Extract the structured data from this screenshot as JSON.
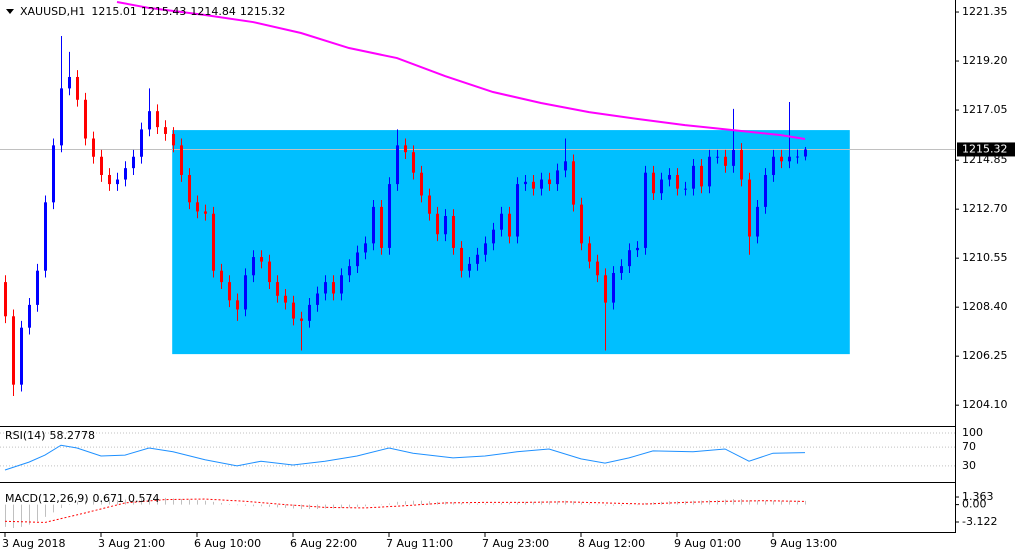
{
  "chart_data": [
    {
      "type": "candlestick",
      "symbol": "XAUUSD,H1",
      "candles": {
        "open": [
          1209.5,
          1208.0,
          1205.0,
          1207.5,
          1208.5,
          1210.0,
          1213.0,
          1215.5,
          1218.0,
          1218.5,
          1217.5,
          1215.8,
          1215.0,
          1214.2,
          1213.8,
          1214.0,
          1214.5,
          1215.0,
          1216.2,
          1217.0,
          1216.3,
          1216.0,
          1215.5,
          1214.2,
          1213.0,
          1212.6,
          1212.5,
          1210.0,
          1209.5,
          1208.7,
          1208.3,
          1209.8,
          1210.6,
          1210.4,
          1209.5,
          1208.9,
          1208.6,
          1207.9,
          1207.8,
          1208.5,
          1209.0,
          1209.5,
          1209.0,
          1209.8,
          1210.2,
          1210.8,
          1211.2,
          1212.8,
          1211.0,
          1213.8,
          1215.5,
          1215.2,
          1214.3,
          1213.3,
          1212.5,
          1211.6,
          1212.4,
          1211.0,
          1210.0,
          1210.3,
          1210.7,
          1211.2,
          1211.8,
          1212.5,
          1211.5,
          1213.8,
          1213.9,
          1213.6,
          1214.0,
          1213.8,
          1214.4,
          1214.8,
          1212.9,
          1211.2,
          1210.4,
          1209.8,
          1208.6,
          1209.9,
          1210.2,
          1210.9,
          1211.0,
          1214.3,
          1213.4,
          1214.0,
          1214.2,
          1213.6,
          1213.6,
          1214.6,
          1213.7,
          1215.0,
          1215.0,
          1214.6,
          1215.3,
          1214.0,
          1211.5,
          1212.8,
          1214.2,
          1215.0,
          1214.8,
          1215.0,
          1215.01
        ],
        "high": [
          1209.8,
          1208.3,
          1207.8,
          1208.8,
          1210.3,
          1213.3,
          1215.8,
          1220.3,
          1219.6,
          1218.8,
          1217.8,
          1216.1,
          1215.3,
          1214.5,
          1214.3,
          1214.8,
          1215.3,
          1216.5,
          1218.0,
          1217.3,
          1216.6,
          1216.3,
          1215.8,
          1214.5,
          1213.3,
          1212.9,
          1212.8,
          1210.3,
          1209.8,
          1209.0,
          1210.1,
          1210.9,
          1210.9,
          1210.7,
          1209.8,
          1209.2,
          1208.9,
          1208.2,
          1208.8,
          1209.3,
          1209.8,
          1209.8,
          1210.1,
          1210.5,
          1211.1,
          1211.5,
          1213.1,
          1213.1,
          1214.1,
          1216.2,
          1215.8,
          1215.5,
          1214.6,
          1213.6,
          1212.8,
          1212.7,
          1212.7,
          1211.3,
          1210.6,
          1211.0,
          1211.5,
          1212.1,
          1212.8,
          1212.8,
          1214.1,
          1214.2,
          1214.2,
          1214.3,
          1214.3,
          1214.7,
          1215.8,
          1215.1,
          1213.2,
          1211.5,
          1210.7,
          1210.1,
          1210.2,
          1210.5,
          1211.2,
          1211.3,
          1214.6,
          1214.6,
          1214.3,
          1214.5,
          1214.5,
          1213.9,
          1214.9,
          1214.9,
          1215.3,
          1215.3,
          1215.3,
          1217.1,
          1215.6,
          1214.3,
          1213.1,
          1214.5,
          1215.3,
          1215.3,
          1217.4,
          1215.31,
          1215.43
        ],
        "low": [
          1207.7,
          1204.5,
          1204.7,
          1207.2,
          1208.2,
          1209.7,
          1212.7,
          1215.2,
          1217.7,
          1217.2,
          1215.5,
          1214.7,
          1213.9,
          1213.5,
          1213.5,
          1213.7,
          1214.2,
          1214.7,
          1215.9,
          1216.0,
          1215.7,
          1215.2,
          1213.9,
          1212.7,
          1212.3,
          1212.2,
          1209.7,
          1209.2,
          1208.4,
          1207.8,
          1208.0,
          1209.5,
          1210.1,
          1209.2,
          1208.6,
          1208.3,
          1207.6,
          1206.5,
          1207.5,
          1208.2,
          1208.7,
          1208.7,
          1208.7,
          1209.5,
          1209.9,
          1210.5,
          1210.9,
          1210.7,
          1210.7,
          1213.5,
          1214.9,
          1214.0,
          1213.0,
          1212.2,
          1211.3,
          1211.3,
          1210.7,
          1209.7,
          1209.7,
          1210.0,
          1210.4,
          1210.9,
          1211.5,
          1211.2,
          1211.2,
          1213.5,
          1213.3,
          1213.3,
          1213.5,
          1213.5,
          1214.1,
          1212.6,
          1210.9,
          1210.1,
          1209.5,
          1206.5,
          1208.3,
          1209.6,
          1209.9,
          1210.6,
          1210.7,
          1213.1,
          1213.1,
          1213.7,
          1213.3,
          1213.3,
          1213.3,
          1213.4,
          1213.4,
          1214.7,
          1214.3,
          1214.3,
          1213.7,
          1210.7,
          1211.2,
          1212.5,
          1213.9,
          1214.5,
          1214.5,
          1214.7,
          1214.84
        ],
        "close": [
          1208.0,
          1205.0,
          1207.5,
          1208.5,
          1210.0,
          1213.0,
          1215.5,
          1218.0,
          1218.5,
          1217.5,
          1215.8,
          1215.0,
          1214.2,
          1213.8,
          1214.0,
          1214.5,
          1215.0,
          1216.2,
          1217.0,
          1216.3,
          1216.0,
          1215.5,
          1214.2,
          1213.0,
          1212.6,
          1212.5,
          1210.0,
          1209.5,
          1208.7,
          1208.3,
          1209.8,
          1210.6,
          1210.4,
          1209.5,
          1208.9,
          1208.6,
          1207.9,
          1207.8,
          1208.5,
          1209.0,
          1209.5,
          1209.0,
          1209.8,
          1210.2,
          1210.8,
          1211.2,
          1212.8,
          1211.0,
          1213.8,
          1215.5,
          1215.2,
          1214.3,
          1213.3,
          1212.5,
          1211.6,
          1212.4,
          1211.0,
          1210.0,
          1210.3,
          1210.7,
          1211.2,
          1211.8,
          1212.5,
          1211.5,
          1213.8,
          1213.9,
          1213.6,
          1214.0,
          1213.8,
          1214.4,
          1214.8,
          1212.9,
          1211.2,
          1210.4,
          1209.8,
          1208.6,
          1209.9,
          1210.2,
          1210.9,
          1211.0,
          1214.3,
          1213.4,
          1214.0,
          1214.2,
          1213.6,
          1213.6,
          1214.6,
          1213.7,
          1215.0,
          1215.0,
          1214.6,
          1215.3,
          1214.0,
          1211.5,
          1212.8,
          1214.2,
          1215.0,
          1214.8,
          1215.0,
          1215.01,
          1215.32
        ]
      },
      "up_color": "#0000ff",
      "down_color": "#ff0000",
      "ylim": [
        1203.23,
        1221.79
      ],
      "yticks": [
        1221.35,
        {
          "value": 1219.2,
          "label": "1219.20"
        },
        1217.05,
        1214.85,
        {
          "value": 1212.7,
          "label": "1212.70"
        },
        1210.55,
        {
          "value": 1208.4,
          "label": "1208.40"
        },
        1206.25,
        {
          "value": 1204.1,
          "label": "1204.10"
        }
      ],
      "xticks": [
        {
          "value": 0,
          "label": "3 Aug 2018"
        },
        {
          "value": 12,
          "label": "3 Aug 21:00"
        },
        {
          "value": 24,
          "label": "6 Aug 10:00"
        },
        {
          "value": 36,
          "label": "6 Aug 22:00"
        },
        {
          "value": 48,
          "label": "7 Aug 11:00"
        },
        {
          "value": 60,
          "label": "7 Aug 23:00"
        },
        {
          "value": 72,
          "label": "8 Aug 12:00"
        },
        {
          "value": 84,
          "label": "9 Aug 01:00"
        },
        {
          "value": 96,
          "label": "9 Aug 13:00"
        }
      ],
      "moving_average": {
        "color": "#ff00ff",
        "x": [
          14,
          18,
          25,
          31,
          37,
          43,
          49,
          55,
          61,
          67,
          73,
          79,
          85,
          91,
          97,
          100
        ],
        "values": [
          1221.79,
          1221.53,
          1221.22,
          1220.91,
          1220.43,
          1219.77,
          1219.33,
          1218.54,
          1217.84,
          1217.36,
          1216.96,
          1216.66,
          1216.39,
          1216.17,
          1215.95,
          1215.78
        ]
      },
      "zone": {
        "color": "#00bfff",
        "x": [
          20.9,
          105.6
        ],
        "y": [
          1206.34,
          1216.17
        ]
      },
      "price_line_color": "#c0c0c0"
    },
    {
      "type": "line",
      "title": "RSI(14)",
      "color": "#1e90ff",
      "x": [
        0,
        3,
        5,
        7,
        9,
        12,
        15,
        18,
        21,
        25,
        29,
        32,
        36,
        40,
        44,
        48,
        51,
        56,
        60,
        64,
        68,
        72,
        75,
        78,
        81,
        86,
        90,
        93,
        96,
        100
      ],
      "values": [
        21.3,
        38,
        53,
        74,
        68,
        51,
        53,
        68,
        60,
        43,
        30,
        40,
        32,
        40,
        51,
        68,
        57,
        47,
        51,
        60,
        66,
        45,
        36,
        47,
        62,
        60,
        66,
        40,
        57,
        58.2778
      ],
      "ylim": [
        0,
        100
      ],
      "yticks": [
        100,
        70,
        30
      ]
    },
    {
      "type": "macd",
      "title": "MACD(12,26,9)",
      "histogram": {
        "color": "#c0c0c0",
        "values": [
          -4.0,
          -4.2,
          -4.0,
          -3.6,
          -3.0,
          -2.2,
          -1.4,
          -0.6,
          0.1,
          0.5,
          0.7,
          0.8,
          0.8,
          0.8,
          0.8,
          0.9,
          1.0,
          1.1,
          1.2,
          1.2,
          1.2,
          1.1,
          1.0,
          0.9,
          0.8,
          0.7,
          0.5,
          0.3,
          0.1,
          -0.1,
          -0.2,
          -0.3,
          -0.3,
          -0.4,
          -0.5,
          -0.6,
          -0.7,
          -0.8,
          -0.8,
          -0.8,
          -0.7,
          -0.7,
          -0.6,
          -0.5,
          -0.4,
          -0.3,
          -0.1,
          0.0,
          0.2,
          0.5,
          0.6,
          0.7,
          0.7,
          0.6,
          0.5,
          0.5,
          0.4,
          0.3,
          0.2,
          0.2,
          0.2,
          0.2,
          0.3,
          0.3,
          0.4,
          0.5,
          0.5,
          0.6,
          0.6,
          0.6,
          0.7,
          0.6,
          0.4,
          0.2,
          0.0,
          -0.2,
          -0.2,
          -0.2,
          -0.1,
          0.0,
          0.3,
          0.4,
          0.5,
          0.6,
          0.6,
          0.6,
          0.7,
          0.7,
          0.8,
          0.8,
          0.9,
          1.0,
          1.0,
          0.8,
          0.7,
          0.7,
          0.7,
          0.7,
          0.7,
          0.7,
          0.671
        ]
      },
      "signal": {
        "color": "#ff0000",
        "x": [
          0,
          5,
          10,
          15,
          20,
          25,
          30,
          35,
          40,
          45,
          50,
          55,
          60,
          65,
          70,
          75,
          80,
          85,
          90,
          95,
          100
        ],
        "values": [
          -3.0,
          -3.2,
          -1.5,
          0.3,
          0.9,
          1.0,
          0.6,
          0.0,
          -0.5,
          -0.6,
          -0.2,
          0.3,
          0.4,
          0.4,
          0.5,
          0.3,
          0.1,
          0.4,
          0.6,
          0.7,
          0.574
        ]
      },
      "ylim": [
        -4.74,
        3.7
      ],
      "yticks": [
        1.363,
        {
          "value": 0,
          "label": "0.00"
        },
        -3.122
      ]
    }
  ]
}
